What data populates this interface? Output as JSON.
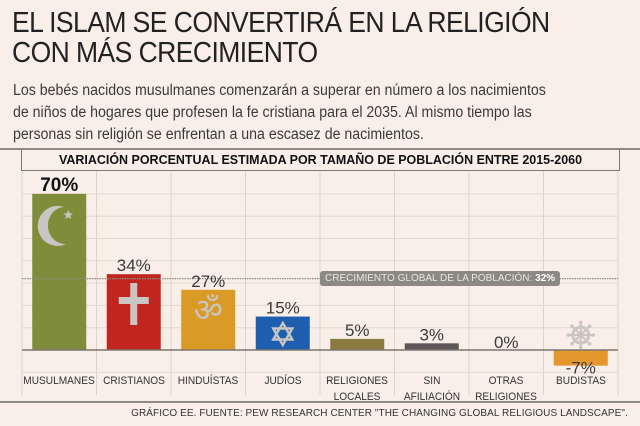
{
  "header": {
    "title": "EL ISLAM SE CONVERTIRÁ EN LA RELIGIÓN CON MÁS CRECIMIENTO",
    "title_line1": "EL ISLAM SE CONVERTIRÁ EN LA RELIGIÓN",
    "title_line2": "CON MÁS CRECIMIENTO",
    "subtitle_line1": "Los bebés nacidos musulmanes comenzarán a superar en número a los nacimientos",
    "subtitle_line2": "de niños de hogares que profesen la fe cristiana para el 2035. Al mismo tiempo las",
    "subtitle_line3": "personas sin religión se enfrentan a una escasez de nacimientos."
  },
  "footer": {
    "source": "GRÁFICO EE. FUENTE: PEW RESEARCH CENTER \"THE CHANGING GLOBAL RELIGIOUS LANDSCAPE\"."
  },
  "chart_data": {
    "type": "bar",
    "title": "VARIACIÓN PORCENTUAL ESTIMADA POR TAMAÑO DE POBLACIÓN ENTRE 2015-2060",
    "xlabel": "",
    "ylabel": "",
    "ylim": [
      -10,
      70
    ],
    "grid": true,
    "categories": [
      "MUSULMANES",
      "CRISTIANOS",
      "HINDUÍSTAS",
      "JUDÍOS",
      "RELIGIONES LOCALES",
      "SIN AFILIACIÓN",
      "OTRAS RELIGIONES",
      "BUDISTAS"
    ],
    "category_lines": [
      [
        "MUSULMANES"
      ],
      [
        "CRISTIANOS"
      ],
      [
        "HINDUÍSTAS"
      ],
      [
        "JUDÍOS"
      ],
      [
        "RELIGIONES",
        "LOCALES"
      ],
      [
        "SIN AFILIACIÓN"
      ],
      [
        "OTRAS",
        "RELIGIONES"
      ],
      [
        "BUDISTAS"
      ]
    ],
    "values": [
      70,
      34,
      27,
      15,
      5,
      3,
      0,
      -7
    ],
    "data_labels": [
      "70%",
      "34%",
      "27%",
      "15%",
      "5%",
      "3%",
      "0%",
      "-7%"
    ],
    "colors": [
      "#7f8c3a",
      "#c0251f",
      "#d99b26",
      "#1d5fae",
      "#8a7a3f",
      "#5b5757",
      "#8a8a8a",
      "#e5962c"
    ],
    "icons": [
      "crescent-star-icon",
      "cross-icon",
      "om-icon",
      "star-of-david-icon",
      null,
      null,
      null,
      "dharma-wheel-icon"
    ],
    "reference_line": {
      "value": 32,
      "label": "CRECIMIENTO GLOBAL DE LA POBLACIÓN:",
      "value_label": "32%"
    }
  }
}
